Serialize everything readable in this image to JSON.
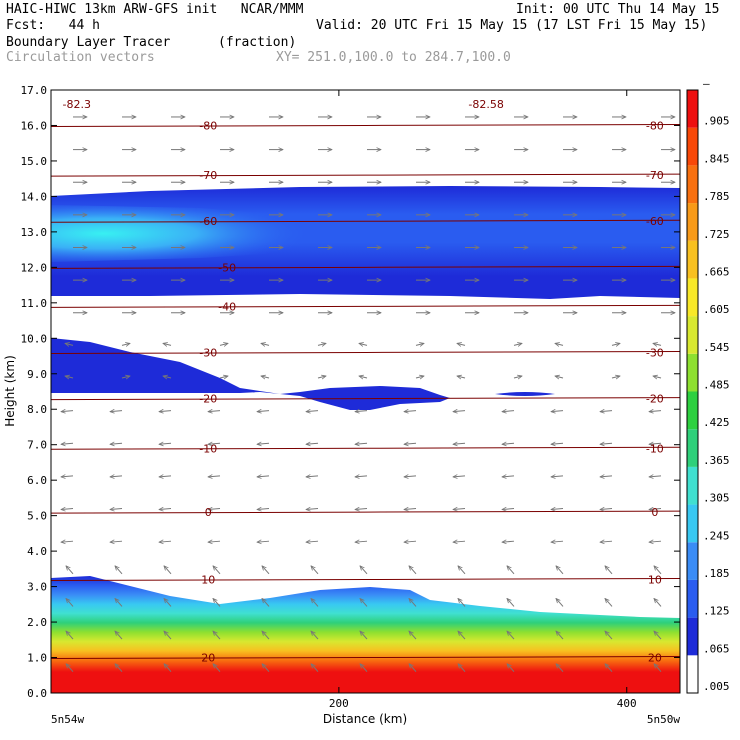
{
  "header": {
    "line1_left": "HAIC-HIWC 13km ARW-GFS init   NCAR/MMM",
    "line1_right": "Init: 00 UTC Thu 14 May 15",
    "line2_left": "Fcst:   44 h",
    "line2_right": "Valid: 20 UTC Fri 15 May 15 (17 LST Fri 15 May 15)",
    "line3_left": "Boundary Layer Tracer",
    "line3_units": "(fraction)",
    "line4_left": "Circulation vectors",
    "line4_xy": "XY= 251.0,100.0 to 284.7,100.0"
  },
  "chart_data": {
    "type": "cross-section",
    "xlabel": "Distance (km)",
    "ylabel": "Height (km)",
    "x_ticks": [
      "200",
      "400"
    ],
    "x_tick_values": [
      200,
      400
    ],
    "xlim": [
      0,
      437
    ],
    "ylim": [
      0,
      17
    ],
    "y_ticks": [
      "0.0",
      "1.0",
      "2.0",
      "3.0",
      "4.0",
      "5.0",
      "6.0",
      "7.0",
      "8.0",
      "9.0",
      "10.0",
      "11.0",
      "12.0",
      "13.0",
      "14.0",
      "15.0",
      "16.0",
      "17.0"
    ],
    "x_end_left": "5n54w",
    "x_end_right": "5n50w",
    "colorbar": {
      "labels": [
        ".005",
        ".065",
        ".125",
        ".185",
        ".245",
        ".305",
        ".365",
        ".425",
        ".485",
        ".545",
        ".605",
        ".665",
        ".725",
        ".785",
        ".845",
        ".905",
        "–"
      ],
      "colors": [
        "#ffffff",
        "#1e2bd8",
        "#2a5cf0",
        "#3a8cf6",
        "#38c8f2",
        "#40e0d0",
        "#2fd07a",
        "#2ed040",
        "#8ee030",
        "#d8e830",
        "#f8e828",
        "#f8c020",
        "#f89a18",
        "#f87010",
        "#f84808",
        "#ee1010"
      ]
    },
    "temperature_contours": [
      {
        "value": -80,
        "height_km": 16.0,
        "labels": [
          "-80",
          "-80"
        ]
      },
      {
        "value": -70,
        "height_km": 14.6,
        "labels": [
          "-70",
          "-70"
        ]
      },
      {
        "value": -60,
        "height_km": 13.3,
        "labels": [
          "-60",
          "-60"
        ]
      },
      {
        "value": -50,
        "height_km": 12.0,
        "labels": [
          "-50"
        ]
      },
      {
        "value": -40,
        "height_km": 10.9,
        "labels": [
          "-40"
        ]
      },
      {
        "value": -30,
        "height_km": 9.6,
        "labels": [
          "-30",
          "-30"
        ]
      },
      {
        "value": -20,
        "height_km": 8.3,
        "labels": [
          "-20",
          "-20"
        ]
      },
      {
        "value": -10,
        "height_km": 6.9,
        "labels": [
          "-10",
          "-10"
        ]
      },
      {
        "value": 0,
        "height_km": 5.1,
        "labels": [
          "0",
          "0"
        ]
      },
      {
        "value": 10,
        "height_km": 3.2,
        "labels": [
          "10",
          "10"
        ]
      },
      {
        "value": 20,
        "height_km": 1.0,
        "labels": [
          "20",
          "20"
        ]
      }
    ],
    "minima_labels": [
      {
        "text": "-82.3",
        "x_km": 8,
        "height_km": 16.6
      },
      {
        "text": "-82.58",
        "x_km": 290,
        "height_km": 16.6
      }
    ],
    "tracer_layers": [
      {
        "name_hint": "upper",
        "bottom_km": 11.1,
        "top_km": 14.4
      },
      {
        "name_hint": "mid",
        "bottom_km": 8.3,
        "top_km": 10.1
      },
      {
        "name_hint": "boundary",
        "bottom_km": 0.0,
        "top_km": 3.3
      }
    ]
  }
}
